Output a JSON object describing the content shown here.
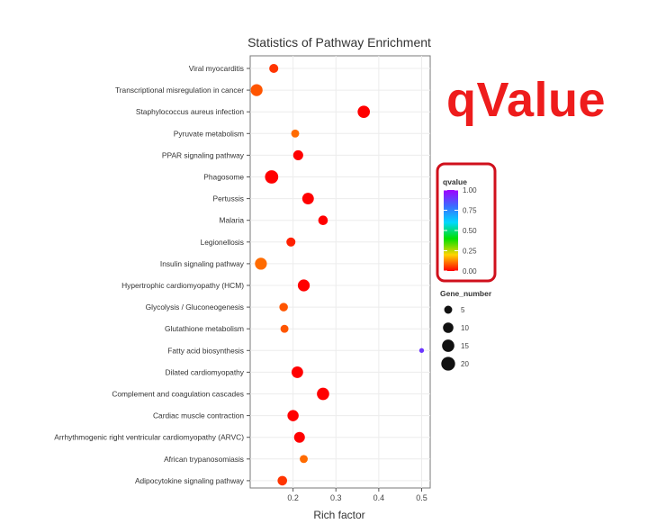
{
  "annotation": {
    "text": "qValue",
    "color": "#ee1c1c"
  },
  "chart_data": {
    "type": "scatter",
    "title": "Statistics of Pathway Enrichment",
    "xlabel": "Rich factor",
    "ylabel": "",
    "xlim": [
      0.1,
      0.52
    ],
    "xticks": [
      0.2,
      0.3,
      0.4,
      0.5
    ],
    "xtick_labels": [
      "0.2",
      "0.3",
      "0.4",
      "0.5"
    ],
    "grid": true,
    "points": [
      {
        "pathway": "Viral myocarditis",
        "rich_factor": 0.155,
        "qvalue": 0.05,
        "gene_number": 7
      },
      {
        "pathway": "Transcriptional misregulation in cancer",
        "rich_factor": 0.115,
        "qvalue": 0.08,
        "gene_number": 14
      },
      {
        "pathway": "Staphylococcus aureus infection",
        "rich_factor": 0.365,
        "qvalue": 0.0,
        "gene_number": 15
      },
      {
        "pathway": "Pyruvate metabolism",
        "rich_factor": 0.205,
        "qvalue": 0.1,
        "gene_number": 5
      },
      {
        "pathway": "PPAR signaling pathway",
        "rich_factor": 0.212,
        "qvalue": 0.0,
        "gene_number": 9
      },
      {
        "pathway": "Phagosome",
        "rich_factor": 0.15,
        "qvalue": 0.0,
        "gene_number": 18
      },
      {
        "pathway": "Pertussis",
        "rich_factor": 0.235,
        "qvalue": 0.0,
        "gene_number": 13
      },
      {
        "pathway": "Malaria",
        "rich_factor": 0.27,
        "qvalue": 0.0,
        "gene_number": 8
      },
      {
        "pathway": "Legionellosis",
        "rich_factor": 0.195,
        "qvalue": 0.03,
        "gene_number": 7
      },
      {
        "pathway": "Insulin signaling pathway",
        "rich_factor": 0.125,
        "qvalue": 0.1,
        "gene_number": 14
      },
      {
        "pathway": "Hypertrophic cardiomyopathy (HCM)",
        "rich_factor": 0.225,
        "qvalue": 0.0,
        "gene_number": 14
      },
      {
        "pathway": "Glycolysis / Gluconeogenesis",
        "rich_factor": 0.178,
        "qvalue": 0.08,
        "gene_number": 6
      },
      {
        "pathway": "Glutathione metabolism",
        "rich_factor": 0.18,
        "qvalue": 0.08,
        "gene_number": 5
      },
      {
        "pathway": "Fatty acid biosynthesis",
        "rich_factor": 0.5,
        "qvalue": 0.9,
        "gene_number": 1
      },
      {
        "pathway": "Dilated cardiomyopathy",
        "rich_factor": 0.21,
        "qvalue": 0.0,
        "gene_number": 13
      },
      {
        "pathway": "Complement and coagulation cascades",
        "rich_factor": 0.27,
        "qvalue": 0.0,
        "gene_number": 15
      },
      {
        "pathway": "Cardiac muscle contraction",
        "rich_factor": 0.2,
        "qvalue": 0.0,
        "gene_number": 12
      },
      {
        "pathway": "Arrhythmogenic right ventricular cardiomyopathy (ARVC)",
        "rich_factor": 0.215,
        "qvalue": 0.0,
        "gene_number": 11
      },
      {
        "pathway": "African trypanosomiasis",
        "rich_factor": 0.225,
        "qvalue": 0.1,
        "gene_number": 5
      },
      {
        "pathway": "Adipocytokine signaling pathway",
        "rich_factor": 0.175,
        "qvalue": 0.05,
        "gene_number": 8
      }
    ],
    "color_legend": {
      "title": "qvalue",
      "ticks": [
        "1.00",
        "0.75",
        "0.50",
        "0.25",
        "0.00"
      ],
      "tick_values": [
        1.0,
        0.75,
        0.5,
        0.25,
        0.0
      ],
      "colors_low_to_high": [
        "#ff0000",
        "#ffd500",
        "#00e000",
        "#00d8ff",
        "#3a6cff",
        "#a000ff"
      ],
      "highlight_color": "#d0101c"
    },
    "size_legend": {
      "title": "Gene_number",
      "values": [
        5,
        10,
        15,
        20
      ],
      "labels": [
        "5",
        "10",
        "15",
        "20"
      ]
    },
    "legend_placement": "right"
  }
}
